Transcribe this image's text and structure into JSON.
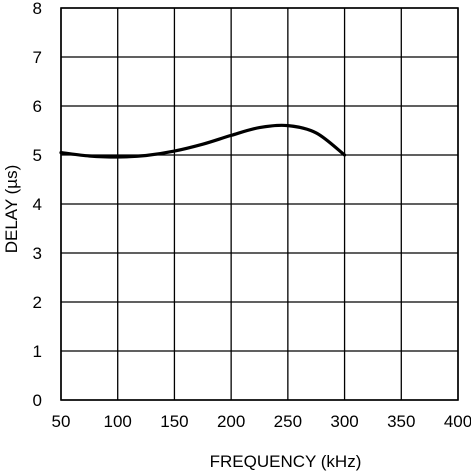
{
  "chart_data": {
    "type": "line",
    "title": "",
    "xlabel": "FREQUENCY (kHz)",
    "ylabel": "DELAY (µs)",
    "xlim": [
      50,
      400
    ],
    "ylim": [
      0,
      8
    ],
    "x_ticks": [
      50,
      100,
      150,
      200,
      250,
      300,
      350,
      400
    ],
    "y_ticks": [
      0,
      1,
      2,
      3,
      4,
      5,
      6,
      7,
      8
    ],
    "grid": true,
    "series": [
      {
        "x": [
          50,
          75,
          100,
          125,
          150,
          175,
          200,
          225,
          250,
          275,
          300
        ],
        "y": [
          5.05,
          4.98,
          4.96,
          4.99,
          5.08,
          5.22,
          5.4,
          5.56,
          5.6,
          5.45,
          5.0
        ],
        "color": "#000000"
      }
    ]
  }
}
